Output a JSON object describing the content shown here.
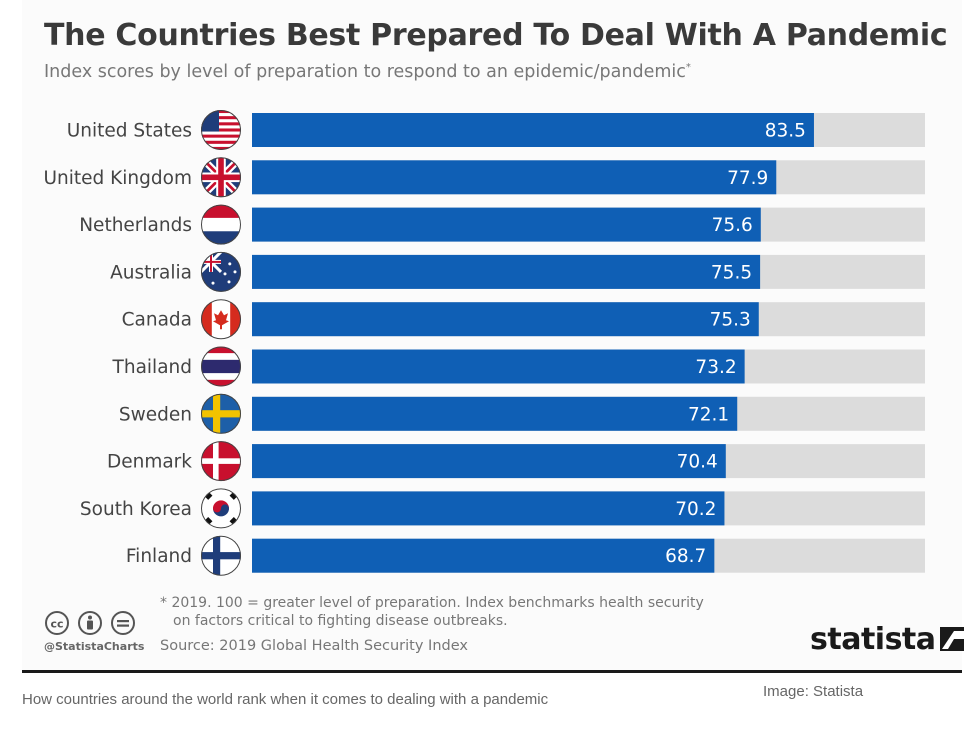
{
  "chart_data": {
    "type": "bar",
    "orientation": "horizontal",
    "title": "The Countries Best Prepared To Deal With A Pandemic",
    "subtitle": "Index scores by level of preparation to respond to an epidemic/pandemic",
    "subtitle_mark": "*",
    "categories": [
      "United States",
      "United Kingdom",
      "Netherlands",
      "Australia",
      "Canada",
      "Thailand",
      "Sweden",
      "Denmark",
      "South Korea",
      "Finland"
    ],
    "values": [
      83.5,
      77.9,
      75.6,
      75.5,
      75.3,
      73.2,
      72.1,
      70.4,
      70.2,
      68.7
    ],
    "value_labels": [
      "83.5",
      "77.9",
      "75.6",
      "75.5",
      "75.3",
      "73.2",
      "72.1",
      "70.4",
      "70.2",
      "68.7"
    ],
    "xlim": [
      0,
      100
    ],
    "bar_color": "#0f5fb5",
    "track_color": "#dcdcdc",
    "flag_icons": [
      "usa-flag-icon",
      "uk-flag-icon",
      "netherlands-flag-icon",
      "australia-flag-icon",
      "canada-flag-icon",
      "thailand-flag-icon",
      "sweden-flag-icon",
      "denmark-flag-icon",
      "south-korea-flag-icon",
      "finland-flag-icon"
    ],
    "grid": false,
    "legend": "none"
  },
  "footer": {
    "note_line1": "* 2019. 100 = greater level of preparation. Index benchmarks health security",
    "note_line2": "on factors critical to fighting disease outbreaks.",
    "source": "Source: 2019 Global Health Security Index",
    "handle": "@StatistaCharts",
    "brand": "statista"
  },
  "article": {
    "caption": "How countries around the world rank when it comes to dealing with a pandemic",
    "credit": "Image: Statista"
  }
}
